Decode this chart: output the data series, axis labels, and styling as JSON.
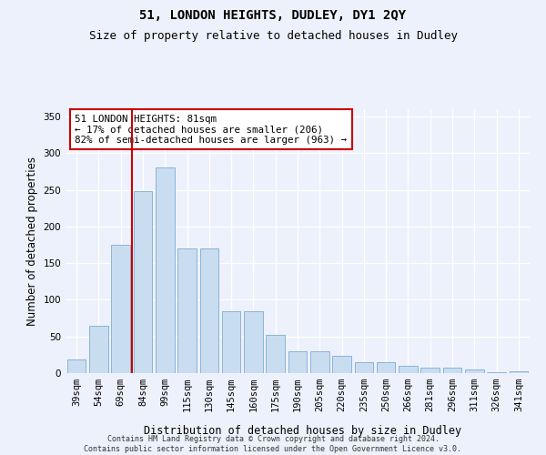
{
  "title": "51, LONDON HEIGHTS, DUDLEY, DY1 2QY",
  "subtitle": "Size of property relative to detached houses in Dudley",
  "xlabel": "Distribution of detached houses by size in Dudley",
  "ylabel": "Number of detached properties",
  "categories": [
    "39sqm",
    "54sqm",
    "69sqm",
    "84sqm",
    "99sqm",
    "115sqm",
    "130sqm",
    "145sqm",
    "160sqm",
    "175sqm",
    "190sqm",
    "205sqm",
    "220sqm",
    "235sqm",
    "250sqm",
    "266sqm",
    "281sqm",
    "296sqm",
    "311sqm",
    "326sqm",
    "341sqm"
  ],
  "values": [
    19,
    65,
    175,
    248,
    281,
    170,
    170,
    85,
    85,
    52,
    30,
    30,
    24,
    15,
    15,
    10,
    8,
    7,
    5,
    1,
    3
  ],
  "bar_color": "#c9ddf0",
  "bar_edge_color": "#8ab4d8",
  "vline_x": 2.5,
  "vline_color": "#cc0000",
  "annotation_text": "51 LONDON HEIGHTS: 81sqm\n← 17% of detached houses are smaller (206)\n82% of semi-detached houses are larger (963) →",
  "annotation_box_color": "#ffffff",
  "annotation_box_edge": "#cc0000",
  "footer": "Contains HM Land Registry data © Crown copyright and database right 2024.\nContains public sector information licensed under the Open Government Licence v3.0.",
  "background_color": "#edf1fb",
  "plot_background": "#edf1fb",
  "ylim": [
    0,
    360
  ],
  "yticks": [
    0,
    50,
    100,
    150,
    200,
    250,
    300,
    350
  ],
  "grid_color": "#ffffff",
  "title_fontsize": 10,
  "subtitle_fontsize": 9,
  "tick_fontsize": 7.5,
  "ylabel_fontsize": 8.5
}
